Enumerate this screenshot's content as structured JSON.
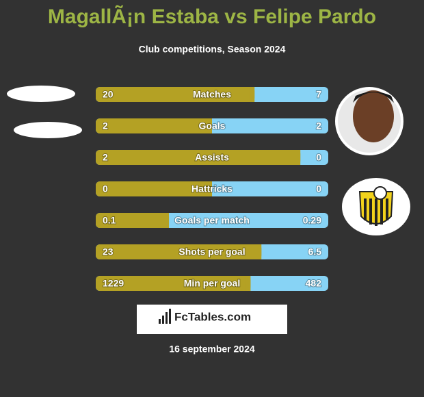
{
  "header": {
    "title": "MagallÃ¡n Estaba vs Felipe Pardo",
    "subtitle": "Club competitions, Season 2024"
  },
  "rows": [
    {
      "label": "Matches",
      "left": 20,
      "right": 7
    },
    {
      "label": "Goals",
      "left": 2,
      "right": 2
    },
    {
      "label": "Assists",
      "left": 2,
      "right": 0
    },
    {
      "label": "Hattricks",
      "left": 0,
      "right": 0
    },
    {
      "label": "Goals per match",
      "left": 0.1,
      "right": 0.29
    },
    {
      "label": "Shots per goal",
      "left": 23,
      "right": 6.5
    },
    {
      "label": "Min per goal",
      "left": 1229,
      "right": 482
    }
  ],
  "footer": {
    "brand": "FcTables.com",
    "date": "16 september 2024"
  }
}
